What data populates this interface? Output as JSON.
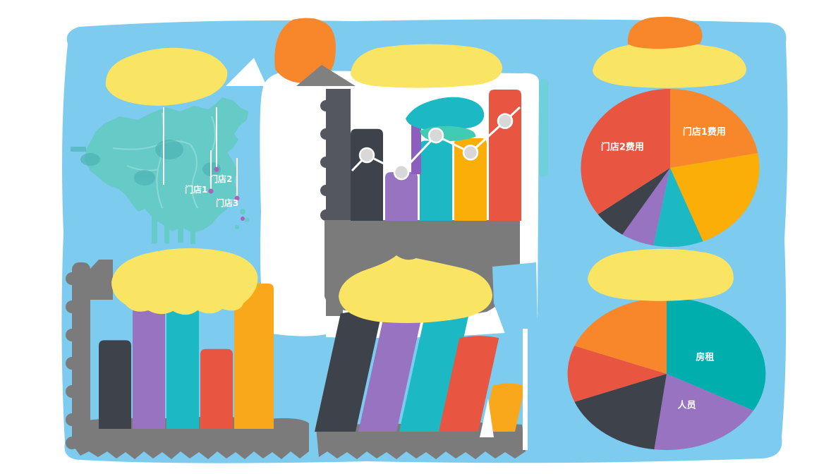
{
  "palette": {
    "page_background": "#FFFFFF",
    "canvas_blue": "#7DCBEE",
    "title_yellow": "#F9E464",
    "accent_orange": "#F8872B",
    "gold": "#FBAD08",
    "red": "#E85541",
    "purple": "#9873C2",
    "charcoal": "#3E434B",
    "teal": "#1CB9C4",
    "teal_dark": "#00AFAD",
    "map_teal": "#66CAC7",
    "map_border": "#8EDAD6",
    "axis_slate": "#54575F",
    "axis_gray": "#7B7B7B",
    "marker_gray": "#D8D8D8",
    "pin_purple": "#AA62B8",
    "mint": "#3FCBB4"
  },
  "chart_data": [
    {
      "type": "map",
      "title": "",
      "region": "China",
      "markers": [
        {
          "label": "门店1"
        },
        {
          "label": "门店2"
        },
        {
          "label": "门店3"
        }
      ]
    },
    {
      "type": "bar",
      "title": "",
      "categories": [
        "",
        "",
        "",
        "",
        ""
      ],
      "series": [
        {
          "name": "",
          "type": "bar",
          "values": [
            70,
            37,
            61,
            63,
            100
          ]
        },
        {
          "name": "",
          "type": "line",
          "values": [
            50,
            37,
            65,
            52,
            76
          ]
        }
      ],
      "colors": [
        "#3E434B",
        "#9873C2",
        "#1CB9C4",
        "#FBAD08",
        "#E85541"
      ],
      "ylim": [
        0,
        100
      ],
      "note": "axis tick labels illegible in source image"
    },
    {
      "type": "pie",
      "title": "",
      "start": "top",
      "direction": "clockwise",
      "slices": [
        {
          "label": "门店1费用",
          "value": 22,
          "color": "#F8872B"
        },
        {
          "label": "",
          "value": 22,
          "color": "#FBAD08"
        },
        {
          "label": "",
          "value": 9,
          "color": "#1CB9C4"
        },
        {
          "label": "",
          "value": 6,
          "color": "#9873C2"
        },
        {
          "label": "",
          "value": 6,
          "color": "#3E434B"
        },
        {
          "label": "门店2费用",
          "value": 35,
          "color": "#E85541"
        }
      ]
    },
    {
      "type": "bar",
      "title": "",
      "categories": [
        "",
        "",
        "",
        "",
        ""
      ],
      "values": [
        61,
        84,
        89,
        55,
        100
      ],
      "colors": [
        "#3E434B",
        "#9873C2",
        "#1CB9C4",
        "#E85541",
        "#F9A81C"
      ],
      "ylim": [
        0,
        100
      ],
      "note": "axis tick labels illegible in source image"
    },
    {
      "type": "bar",
      "title": "",
      "categories": [
        "",
        "",
        "",
        "",
        ""
      ],
      "values": [
        92,
        92,
        100,
        73,
        36
      ],
      "colors": [
        "#3E434B",
        "#9873C2",
        "#1CB9C4",
        "#E85541",
        "#F9A81C"
      ],
      "ylim": [
        0,
        100
      ],
      "note": "axis tick labels illegible in source image"
    },
    {
      "type": "pie",
      "title": "",
      "start": "top",
      "direction": "clockwise",
      "slices": [
        {
          "label": "房租",
          "value": 33,
          "color": "#00AFAD"
        },
        {
          "label": "人员",
          "value": 19,
          "color": "#9873C2"
        },
        {
          "label": "",
          "value": 17,
          "color": "#3E434B"
        },
        {
          "label": "",
          "value": 12,
          "color": "#E85541"
        },
        {
          "label": "",
          "value": 19,
          "color": "#F8872B"
        }
      ]
    }
  ]
}
